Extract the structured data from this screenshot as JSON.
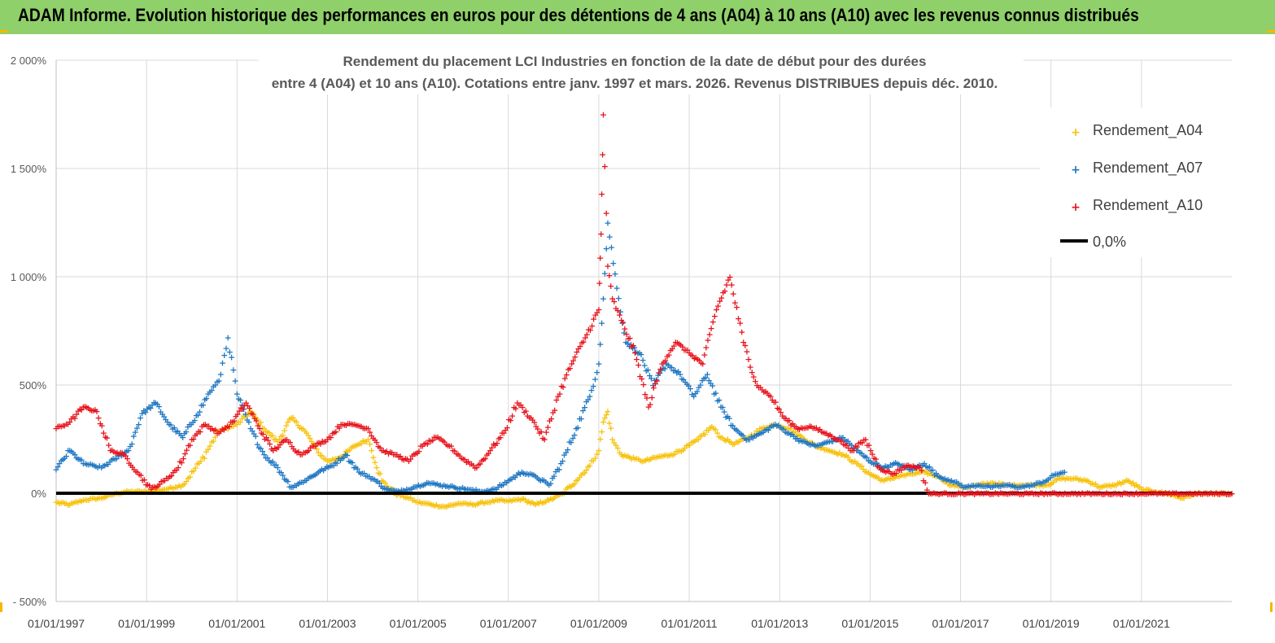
{
  "banner": {
    "title": "ADAM Informe. Evolution historique des performances en euros pour des détentions de 4 ans (A04) à 10 ans (A10) avec les revenus connus distribués"
  },
  "colors": {
    "banner_bg": "#8fd06a",
    "A04": "#f7c20a",
    "A07": "#1f77c2",
    "A10": "#e8121b",
    "zero_line": "#000000",
    "grid": "#d9d9d9"
  },
  "chart_data": {
    "type": "scatter",
    "title_line1": "Rendement du placement LCI Industries en fonction de la date de début pour des durées",
    "title_line2": "entre 4 (A04) et 10 ans (A10).  Cotations entre janv. 1997 et mars. 2026. Revenus DISTRIBUES depuis déc. 2010.",
    "xlim": [
      1997.0,
      2023.0
    ],
    "ylim": [
      -500,
      2000
    ],
    "x_ticks": [
      1997,
      1999,
      2001,
      2003,
      2005,
      2007,
      2009,
      2011,
      2013,
      2015,
      2017,
      2019,
      2021
    ],
    "x_tick_labels": [
      "01/01/1997",
      "01/01/1999",
      "01/01/2001",
      "01/01/2003",
      "01/01/2005",
      "01/01/2007",
      "01/01/2009",
      "01/01/2011",
      "01/01/2013",
      "01/01/2015",
      "01/01/2017",
      "01/01/2019",
      "01/01/2021"
    ],
    "y_ticks": [
      -500,
      0,
      500,
      1000,
      1500,
      2000
    ],
    "y_tick_labels": [
      "- 500%",
      "0%",
      "500%",
      "1 000%",
      "1 500%",
      "2 000%"
    ],
    "legend": [
      "Rendement_A04",
      "Rendement_A07",
      "Rendement_A10",
      "0,0%"
    ],
    "legend_position": "top-right",
    "series": [
      {
        "name": "Rendement_A04",
        "x": [
          1997.0,
          1997.3,
          1997.6,
          1998.0,
          1998.3,
          1998.6,
          1999.0,
          1999.4,
          1999.8,
          2000.2,
          2000.6,
          2001.0,
          2001.3,
          2001.6,
          2001.9,
          2002.2,
          2002.5,
          2002.8,
          2003.0,
          2003.3,
          2003.6,
          2003.9,
          2004.2,
          2004.5,
          2004.8,
          2005.0,
          2005.3,
          2005.6,
          2005.9,
          2006.2,
          2006.5,
          2006.8,
          2007.0,
          2007.3,
          2007.6,
          2007.9,
          2008.2,
          2008.5,
          2008.8,
          2009.0,
          2009.1,
          2009.2,
          2009.3,
          2009.5,
          2009.8,
          2010.0,
          2010.3,
          2010.6,
          2010.9,
          2011.2,
          2011.5,
          2011.7,
          2012.0,
          2012.3,
          2012.6,
          2012.9,
          2013.2,
          2013.5,
          2013.8,
          2014.1,
          2014.4,
          2014.7,
          2015.0,
          2015.3,
          2015.6,
          2015.9,
          2016.2,
          2016.5,
          2016.8,
          2017.1,
          2017.4,
          2017.7,
          2018.0,
          2018.3,
          2018.6,
          2018.9,
          2019.2,
          2019.5,
          2019.8,
          2020.1,
          2020.4,
          2020.7,
          2021.0,
          2021.3,
          2021.6,
          2021.9,
          2022.2,
          2022.5,
          2022.8,
          2023.0
        ],
        "values": [
          -40,
          -50,
          -30,
          -20,
          0,
          10,
          10,
          20,
          40,
          150,
          290,
          320,
          380,
          300,
          240,
          350,
          290,
          190,
          150,
          170,
          220,
          250,
          60,
          0,
          -20,
          -40,
          -50,
          -60,
          -45,
          -50,
          -40,
          -30,
          -35,
          -25,
          -50,
          -30,
          0,
          60,
          130,
          200,
          330,
          380,
          250,
          180,
          160,
          150,
          170,
          180,
          210,
          250,
          310,
          260,
          230,
          260,
          300,
          320,
          300,
          260,
          220,
          200,
          180,
          140,
          90,
          60,
          80,
          90,
          100,
          80,
          40,
          30,
          40,
          50,
          40,
          40,
          40,
          40,
          70,
          70,
          60,
          30,
          40,
          60,
          20,
          10,
          0,
          -20,
          0,
          0,
          0,
          0
        ]
      },
      {
        "name": "Rendement_A07",
        "x": [
          1997.0,
          1997.3,
          1997.6,
          1998.0,
          1998.3,
          1998.6,
          1998.9,
          1999.2,
          1999.5,
          1999.8,
          2000.1,
          2000.4,
          2000.6,
          2000.8,
          2001.0,
          2001.3,
          2001.6,
          2001.9,
          2002.2,
          2002.5,
          2002.8,
          2003.1,
          2003.4,
          2003.7,
          2004.0,
          2004.3,
          2004.6,
          2004.9,
          2005.2,
          2005.5,
          2005.8,
          2006.1,
          2006.4,
          2006.7,
          2007.0,
          2007.3,
          2007.6,
          2007.9,
          2008.2,
          2008.5,
          2008.8,
          2009.0,
          2009.1,
          2009.2,
          2009.4,
          2009.6,
          2009.9,
          2010.2,
          2010.5,
          2010.8,
          2011.1,
          2011.4,
          2011.7,
          2012.0,
          2012.3,
          2012.6,
          2012.9,
          2013.2,
          2013.5,
          2013.8,
          2014.1,
          2014.4,
          2014.7,
          2015.0,
          2015.3,
          2015.6,
          2015.9,
          2016.2,
          2016.5,
          2016.8,
          2017.1,
          2017.4,
          2017.7,
          2018.0,
          2018.3,
          2018.6,
          2018.9,
          2019.1,
          2019.3
        ],
        "values": [
          110,
          200,
          140,
          120,
          160,
          200,
          370,
          420,
          320,
          260,
          360,
          470,
          520,
          720,
          460,
          300,
          180,
          120,
          30,
          60,
          100,
          130,
          180,
          100,
          70,
          20,
          10,
          30,
          50,
          40,
          30,
          20,
          10,
          20,
          60,
          100,
          80,
          40,
          150,
          300,
          450,
          600,
          900,
          1250,
          950,
          700,
          650,
          500,
          600,
          550,
          450,
          550,
          400,
          300,
          250,
          280,
          320,
          280,
          240,
          220,
          240,
          260,
          200,
          150,
          120,
          140,
          110,
          140,
          80,
          60,
          30,
          40,
          30,
          40,
          30,
          40,
          60,
          90,
          100
        ]
      },
      {
        "name": "Rendement_A10",
        "x": [
          1997.0,
          1997.3,
          1997.6,
          1997.9,
          1998.2,
          1998.5,
          1998.8,
          1999.1,
          1999.4,
          1999.7,
          2000.0,
          2000.3,
          2000.6,
          2000.9,
          2001.2,
          2001.5,
          2001.8,
          2002.1,
          2002.4,
          2002.7,
          2003.0,
          2003.3,
          2003.6,
          2003.9,
          2004.2,
          2004.5,
          2004.8,
          2005.1,
          2005.4,
          2005.7,
          2006.0,
          2006.3,
          2006.6,
          2006.9,
          2007.2,
          2007.5,
          2007.8,
          2008.1,
          2008.4,
          2008.7,
          2009.0,
          2009.05,
          2009.1,
          2009.2,
          2009.3,
          2009.5,
          2009.8,
          2010.1,
          2010.4,
          2010.7,
          2011.0,
          2011.3,
          2011.6,
          2011.9,
          2012.2,
          2012.5,
          2012.8,
          2013.1,
          2013.4,
          2013.7,
          2014.0,
          2014.3,
          2014.6,
          2014.9,
          2015.2,
          2015.5,
          2015.8,
          2016.1,
          2016.3,
          2016.6,
          2017.0,
          2017.5,
          2018.0,
          2018.5,
          2019.0,
          2019.5,
          2020.0,
          2020.5,
          2021.0,
          2021.5,
          2022.0,
          2022.5,
          2023.0
        ],
        "values": [
          300,
          330,
          400,
          380,
          200,
          180,
          100,
          20,
          60,
          120,
          250,
          320,
          280,
          330,
          420,
          300,
          200,
          250,
          180,
          220,
          250,
          320,
          320,
          300,
          200,
          180,
          150,
          220,
          260,
          220,
          160,
          120,
          200,
          280,
          420,
          350,
          250,
          450,
          600,
          720,
          850,
          1200,
          1750,
          1050,
          900,
          800,
          650,
          400,
          600,
          700,
          650,
          600,
          850,
          1000,
          700,
          500,
          450,
          350,
          300,
          310,
          280,
          250,
          200,
          250,
          120,
          90,
          130,
          120,
          0,
          0,
          0,
          0,
          0,
          0,
          0,
          0,
          0,
          0,
          0,
          0,
          0,
          0,
          0
        ]
      }
    ]
  }
}
